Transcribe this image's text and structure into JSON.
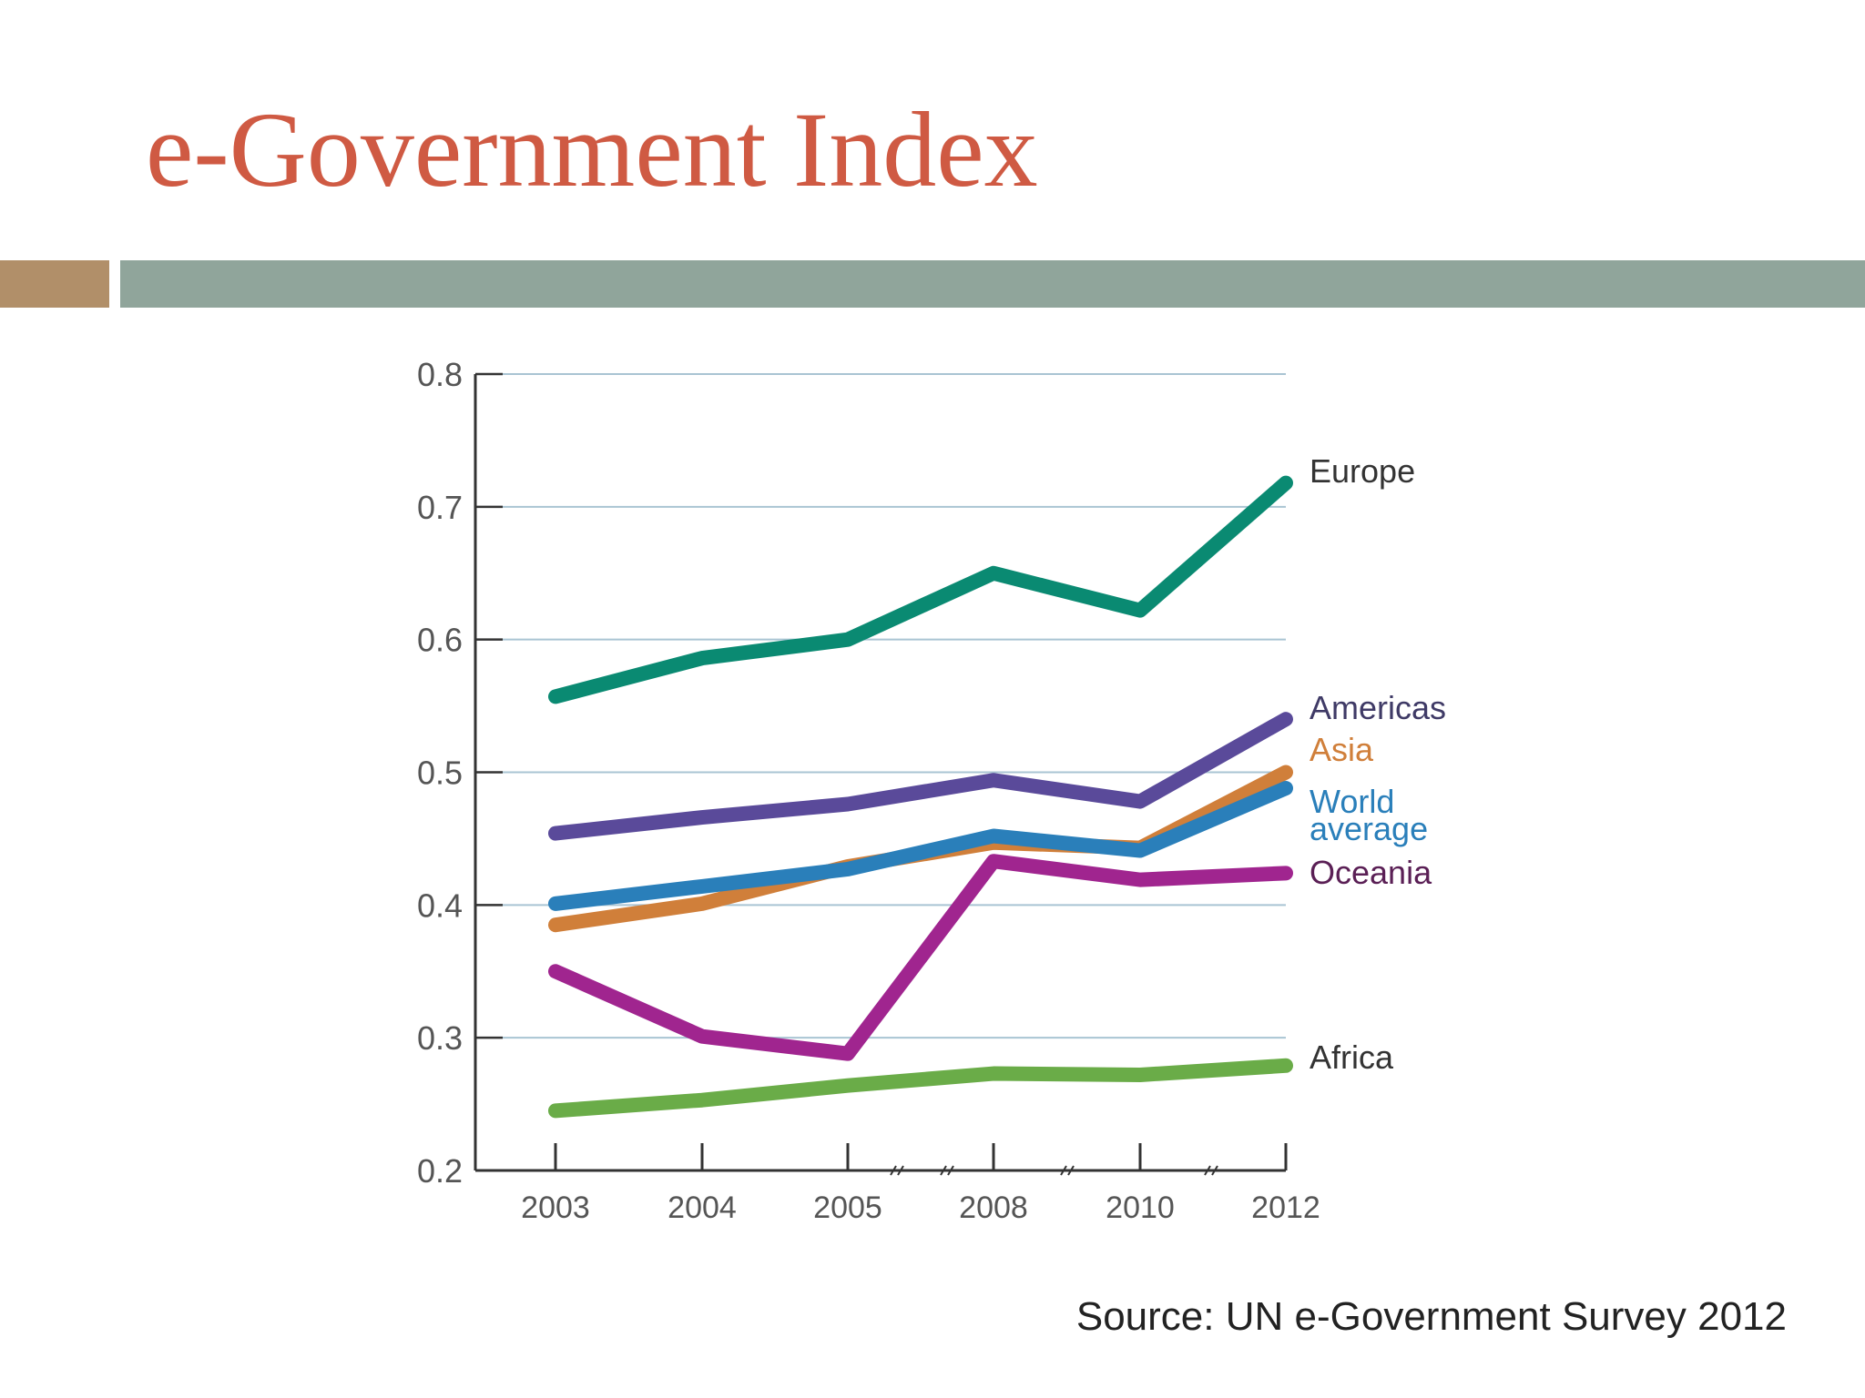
{
  "slide": {
    "title": "e-Government Index",
    "source": "Source: UN e-Government Survey 2012",
    "colors": {
      "title": "#cf5a43",
      "bar_accent": "#b18f69",
      "bar_main": "#90a59b"
    }
  },
  "chart_data": {
    "type": "line",
    "categories": [
      "2003",
      "2004",
      "2005",
      "2008",
      "2010",
      "2012"
    ],
    "y_ticks": [
      "0.8",
      "0.7",
      "0.6",
      "0.5",
      "0.4",
      "0.3",
      "0.2"
    ],
    "ylim": [
      0.2,
      0.8
    ],
    "grid": true,
    "axis_breaks": "between 2005–2008, 2008–2010 and 2010–2012",
    "series": [
      {
        "name": "Europe",
        "color": "#0a8a72",
        "values": [
          0.557,
          0.586,
          0.6,
          0.65,
          0.622,
          0.718
        ]
      },
      {
        "name": "Americas",
        "color": "#5a4a9a",
        "values": [
          0.454,
          0.466,
          0.476,
          0.494,
          0.478,
          0.54
        ]
      },
      {
        "name": "Asia",
        "color": "#d07f3a",
        "values": [
          0.385,
          0.401,
          0.429,
          0.447,
          0.443,
          0.5
        ]
      },
      {
        "name": "World average",
        "color": "#2a7fba",
        "values": [
          0.401,
          0.414,
          0.427,
          0.452,
          0.441,
          0.488
        ]
      },
      {
        "name": "Oceania",
        "color": "#a0258f",
        "values": [
          0.35,
          0.301,
          0.288,
          0.433,
          0.419,
          0.424
        ]
      },
      {
        "name": "Africa",
        "color": "#6aac48",
        "values": [
          0.245,
          0.253,
          0.264,
          0.273,
          0.272,
          0.279
        ]
      }
    ]
  }
}
